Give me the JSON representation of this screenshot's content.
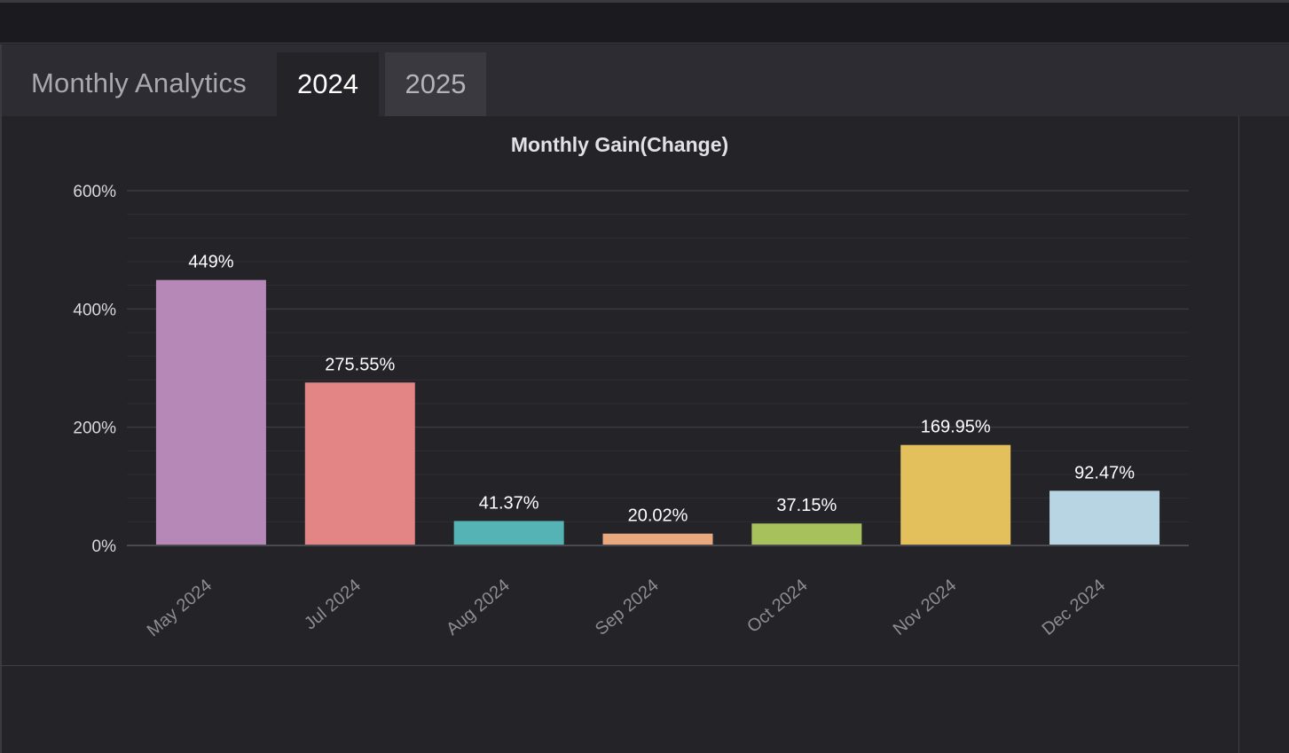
{
  "tabs": {
    "title": "Monthly Analytics",
    "items": [
      {
        "label": "2024",
        "active": true
      },
      {
        "label": "2025",
        "active": false
      }
    ]
  },
  "chart_data": {
    "type": "bar",
    "title": "Monthly Gain(Change)",
    "xlabel": "",
    "ylabel": "",
    "categories": [
      "May 2024",
      "Jul 2024",
      "Aug 2024",
      "Sep 2024",
      "Oct 2024",
      "Nov 2024",
      "Dec 2024"
    ],
    "values": [
      449,
      275.55,
      41.37,
      20.02,
      37.15,
      169.95,
      92.47
    ],
    "data_labels": [
      "449%",
      "275.55%",
      "41.37%",
      "20.02%",
      "37.15%",
      "169.95%",
      "92.47%"
    ],
    "colors": [
      "#b688b8",
      "#e48585",
      "#56b3b5",
      "#e9a97e",
      "#a7c25c",
      "#e3c05b",
      "#b8d5e4"
    ],
    "ylim": [
      0,
      600
    ],
    "yticks": [
      0,
      200,
      400,
      600
    ],
    "ytick_labels": [
      "0%",
      "200%",
      "400%",
      "600%"
    ],
    "grid": true,
    "legend": "none"
  }
}
